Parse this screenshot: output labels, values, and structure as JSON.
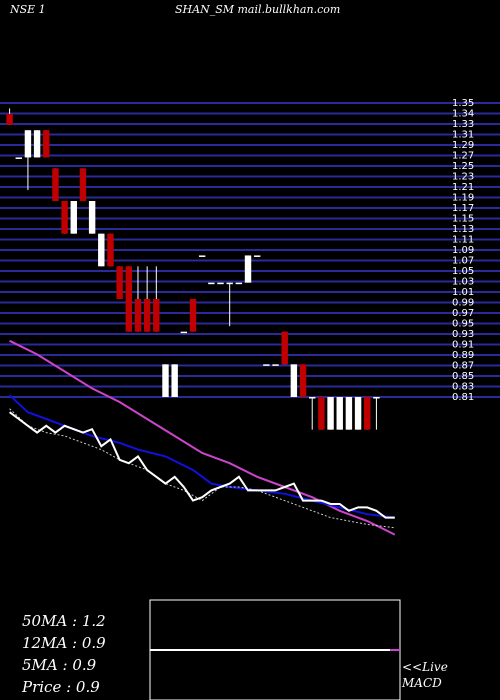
{
  "header": {
    "exchange": "NSE 1",
    "symbol_source": "SHAN_SM mail.bullkhan.com"
  },
  "stats": {
    "ma50": "50MA : 1.2",
    "ma12": "12MA : 0.9",
    "ma5": "5MA : 0.9",
    "price": "Price   : 0.9"
  },
  "macd_panel": {
    "live": "<<Live",
    "label": "MACD"
  },
  "colors": {
    "background": "#000000",
    "grid": "#2a2a9a",
    "bull_candle": "#ffffff",
    "bear_candle": "#c00000",
    "ma_long": "#cc44cc",
    "ma_mid": "#1010e0",
    "price_line": "#ffffff"
  },
  "chart_data": {
    "type": "candlestick",
    "ylim": [
      0.6,
      1.36
    ],
    "y_ticks": [
      "1.35",
      "1.34",
      "1.33",
      "1.31",
      "1.29",
      "1.27",
      "1.25",
      "1.23",
      "1.21",
      "1.19",
      "1.17",
      "1.15",
      "1.13",
      "1.11",
      "1.09",
      "1.07",
      "1.05",
      "1.03",
      "1.01",
      "0.99",
      "0.97",
      "0.95",
      "0.93",
      "0.91",
      "0.89",
      "0.87",
      "0.85",
      "0.83",
      "0.81"
    ],
    "candles": [
      {
        "o": 1.33,
        "h": 1.34,
        "l": 1.31,
        "c": 1.31,
        "dir": "down"
      },
      {
        "o": 1.25,
        "h": 1.25,
        "l": 1.25,
        "c": 1.25,
        "dir": "flat"
      },
      {
        "o": 1.25,
        "h": 1.3,
        "l": 1.19,
        "c": 1.3,
        "dir": "up"
      },
      {
        "o": 1.25,
        "h": 1.3,
        "l": 1.25,
        "c": 1.3,
        "dir": "up"
      },
      {
        "o": 1.3,
        "h": 1.3,
        "l": 1.25,
        "c": 1.25,
        "dir": "down"
      },
      {
        "o": 1.23,
        "h": 1.23,
        "l": 1.17,
        "c": 1.17,
        "dir": "down"
      },
      {
        "o": 1.17,
        "h": 1.17,
        "l": 1.11,
        "c": 1.11,
        "dir": "down"
      },
      {
        "o": 1.11,
        "h": 1.17,
        "l": 1.11,
        "c": 1.17,
        "dir": "up"
      },
      {
        "o": 1.23,
        "h": 1.23,
        "l": 1.17,
        "c": 1.17,
        "dir": "down"
      },
      {
        "o": 1.11,
        "h": 1.17,
        "l": 1.11,
        "c": 1.17,
        "dir": "up"
      },
      {
        "o": 1.05,
        "h": 1.11,
        "l": 1.05,
        "c": 1.11,
        "dir": "up"
      },
      {
        "o": 1.11,
        "h": 1.11,
        "l": 1.05,
        "c": 1.05,
        "dir": "down"
      },
      {
        "o": 1.05,
        "h": 1.05,
        "l": 0.99,
        "c": 0.99,
        "dir": "down"
      },
      {
        "o": 1.05,
        "h": 1.05,
        "l": 0.93,
        "c": 0.93,
        "dir": "down"
      },
      {
        "o": 0.99,
        "h": 1.05,
        "l": 0.93,
        "c": 0.93,
        "dir": "down"
      },
      {
        "o": 0.99,
        "h": 1.05,
        "l": 0.93,
        "c": 0.93,
        "dir": "down"
      },
      {
        "o": 0.99,
        "h": 1.05,
        "l": 0.93,
        "c": 0.93,
        "dir": "down"
      },
      {
        "o": 0.81,
        "h": 0.87,
        "l": 0.81,
        "c": 0.87,
        "dir": "up"
      },
      {
        "o": 0.81,
        "h": 0.87,
        "l": 0.81,
        "c": 0.87,
        "dir": "up"
      },
      {
        "o": 0.93,
        "h": 0.93,
        "l": 0.93,
        "c": 0.93,
        "dir": "flat"
      },
      {
        "o": 0.99,
        "h": 0.99,
        "l": 0.93,
        "c": 0.93,
        "dir": "down"
      },
      {
        "o": 1.07,
        "h": 1.07,
        "l": 1.07,
        "c": 1.07,
        "dir": "flat"
      },
      {
        "o": 1.02,
        "h": 1.02,
        "l": 1.02,
        "c": 1.02,
        "dir": "flat"
      },
      {
        "o": 1.02,
        "h": 1.02,
        "l": 1.02,
        "c": 1.02,
        "dir": "flat"
      },
      {
        "o": 1.02,
        "h": 1.02,
        "l": 0.94,
        "c": 1.02,
        "dir": "flat"
      },
      {
        "o": 1.02,
        "h": 1.02,
        "l": 1.02,
        "c": 1.02,
        "dir": "flat"
      },
      {
        "o": 1.02,
        "h": 1.07,
        "l": 1.02,
        "c": 1.07,
        "dir": "up"
      },
      {
        "o": 1.07,
        "h": 1.07,
        "l": 1.07,
        "c": 1.07,
        "dir": "flat"
      },
      {
        "o": 0.87,
        "h": 0.87,
        "l": 0.87,
        "c": 0.87,
        "dir": "flat"
      },
      {
        "o": 0.87,
        "h": 0.87,
        "l": 0.87,
        "c": 0.87,
        "dir": "flat"
      },
      {
        "o": 0.93,
        "h": 0.93,
        "l": 0.87,
        "c": 0.87,
        "dir": "down"
      },
      {
        "o": 0.81,
        "h": 0.87,
        "l": 0.81,
        "c": 0.87,
        "dir": "up"
      },
      {
        "o": 0.87,
        "h": 0.87,
        "l": 0.81,
        "c": 0.81,
        "dir": "down"
      },
      {
        "o": 0.81,
        "h": 0.81,
        "l": 0.75,
        "c": 0.81,
        "dir": "up"
      },
      {
        "o": 0.81,
        "h": 0.81,
        "l": 0.75,
        "c": 0.75,
        "dir": "down"
      },
      {
        "o": 0.75,
        "h": 0.81,
        "l": 0.75,
        "c": 0.81,
        "dir": "up"
      },
      {
        "o": 0.75,
        "h": 0.81,
        "l": 0.75,
        "c": 0.81,
        "dir": "up"
      },
      {
        "o": 0.75,
        "h": 0.81,
        "l": 0.75,
        "c": 0.81,
        "dir": "up"
      },
      {
        "o": 0.75,
        "h": 0.81,
        "l": 0.75,
        "c": 0.81,
        "dir": "up"
      },
      {
        "o": 0.81,
        "h": 0.81,
        "l": 0.75,
        "c": 0.75,
        "dir": "down"
      },
      {
        "o": 0.81,
        "h": 0.81,
        "l": 0.75,
        "c": 0.81,
        "dir": "up"
      }
    ],
    "indicator_series": [
      {
        "name": "50MA",
        "color": "#cc44cc",
        "width": 2,
        "points": [
          [
            0,
            0.88
          ],
          [
            3,
            0.84
          ],
          [
            6,
            0.79
          ],
          [
            9,
            0.74
          ],
          [
            12,
            0.7
          ],
          [
            15,
            0.65
          ],
          [
            18,
            0.6
          ],
          [
            21,
            0.55
          ],
          [
            24,
            0.52
          ],
          [
            27,
            0.48
          ],
          [
            30,
            0.45
          ],
          [
            33,
            0.42
          ],
          [
            36,
            0.38
          ],
          [
            39,
            0.35
          ],
          [
            42,
            0.31
          ]
        ]
      },
      {
        "name": "12MA",
        "color": "#1010e0",
        "width": 2,
        "points": [
          [
            0,
            0.72
          ],
          [
            2,
            0.67
          ],
          [
            4,
            0.65
          ],
          [
            6,
            0.63
          ],
          [
            9,
            0.6
          ],
          [
            12,
            0.58
          ],
          [
            14,
            0.56
          ],
          [
            17,
            0.54
          ],
          [
            20,
            0.5
          ],
          [
            22,
            0.46
          ],
          [
            24,
            0.45
          ],
          [
            27,
            0.44
          ],
          [
            30,
            0.43
          ],
          [
            33,
            0.41
          ],
          [
            36,
            0.39
          ],
          [
            39,
            0.37
          ],
          [
            42,
            0.36
          ]
        ]
      },
      {
        "name": "5MA",
        "color": "#cccccc",
        "width": 1,
        "points": [
          [
            0,
            0.68
          ],
          [
            2,
            0.63
          ],
          [
            4,
            0.61
          ],
          [
            6,
            0.6
          ],
          [
            8,
            0.58
          ],
          [
            10,
            0.56
          ],
          [
            12,
            0.53
          ],
          [
            15,
            0.5
          ],
          [
            17,
            0.46
          ],
          [
            19,
            0.44
          ],
          [
            21,
            0.41
          ],
          [
            23,
            0.45
          ],
          [
            25,
            0.45
          ],
          [
            27,
            0.44
          ],
          [
            29,
            0.42
          ],
          [
            31,
            0.4
          ],
          [
            33,
            0.38
          ],
          [
            35,
            0.36
          ],
          [
            37,
            0.35
          ],
          [
            39,
            0.34
          ],
          [
            42,
            0.33
          ]
        ]
      },
      {
        "name": "Price",
        "color": "#ffffff",
        "width": 2,
        "points": [
          [
            0,
            0.67
          ],
          [
            1,
            0.65
          ],
          [
            2,
            0.63
          ],
          [
            3,
            0.61
          ],
          [
            4,
            0.63
          ],
          [
            5,
            0.61
          ],
          [
            6,
            0.63
          ],
          [
            7,
            0.62
          ],
          [
            8,
            0.61
          ],
          [
            9,
            0.62
          ],
          [
            10,
            0.57
          ],
          [
            11,
            0.59
          ],
          [
            12,
            0.53
          ],
          [
            13,
            0.52
          ],
          [
            14,
            0.54
          ],
          [
            15,
            0.5
          ],
          [
            16,
            0.48
          ],
          [
            17,
            0.46
          ],
          [
            18,
            0.48
          ],
          [
            19,
            0.45
          ],
          [
            20,
            0.41
          ],
          [
            21,
            0.42
          ],
          [
            22,
            0.44
          ],
          [
            23,
            0.45
          ],
          [
            24,
            0.46
          ],
          [
            25,
            0.48
          ],
          [
            26,
            0.44
          ],
          [
            27,
            0.44
          ],
          [
            28,
            0.44
          ],
          [
            29,
            0.44
          ],
          [
            30,
            0.45
          ],
          [
            31,
            0.46
          ],
          [
            32,
            0.41
          ],
          [
            33,
            0.41
          ],
          [
            34,
            0.41
          ],
          [
            35,
            0.4
          ],
          [
            36,
            0.4
          ],
          [
            37,
            0.38
          ],
          [
            38,
            0.39
          ],
          [
            39,
            0.39
          ],
          [
            40,
            0.38
          ],
          [
            41,
            0.36
          ],
          [
            42,
            0.36
          ]
        ]
      }
    ],
    "macd": {
      "line_level": 0.82,
      "signal_level": 0.82
    }
  }
}
